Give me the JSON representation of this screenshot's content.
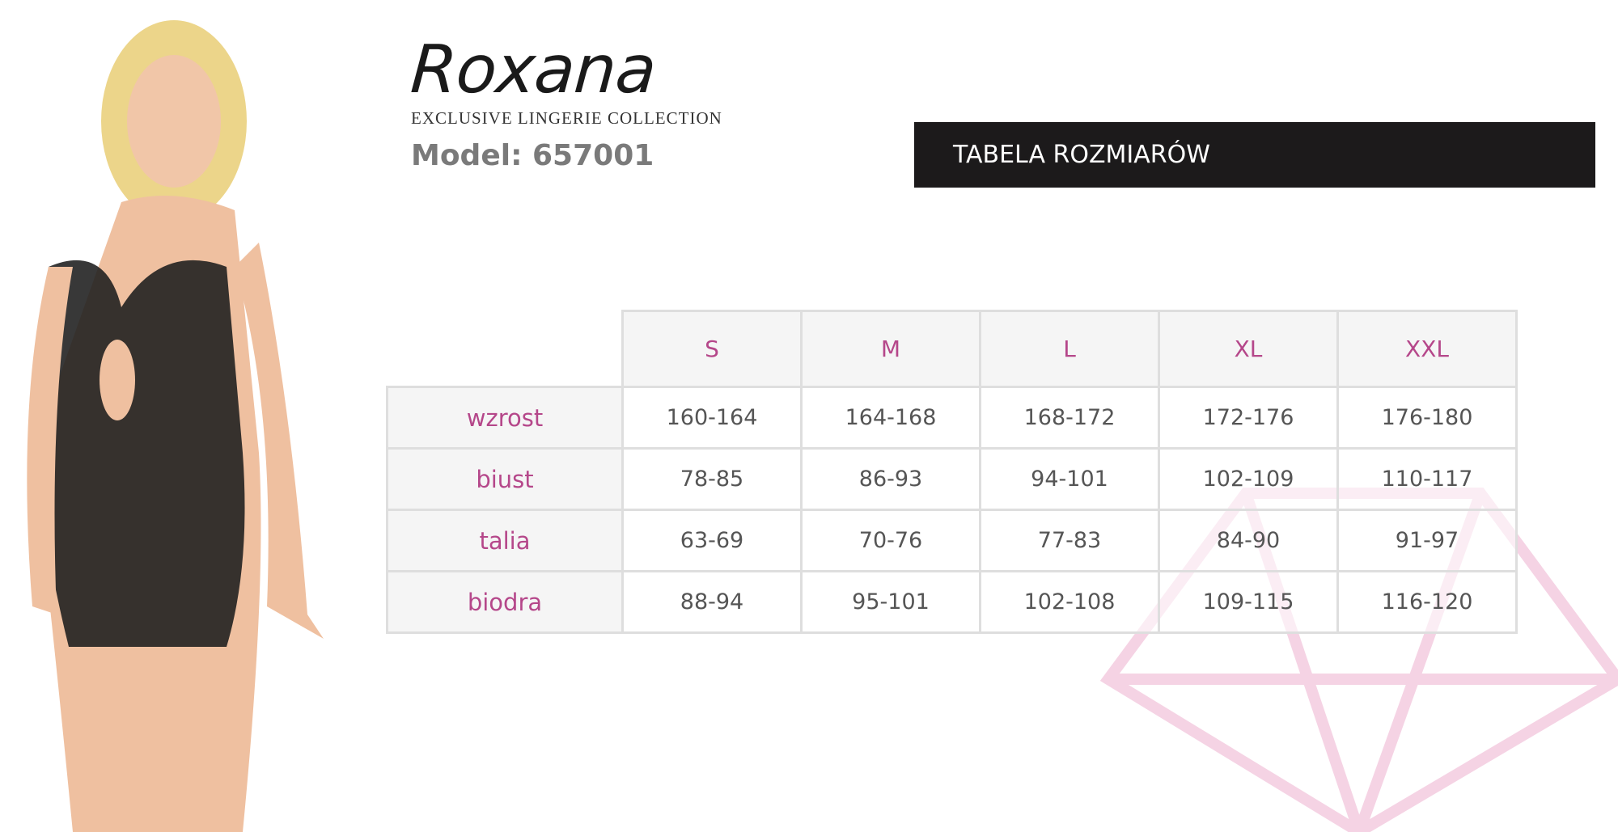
{
  "brand": {
    "name": "Roxana",
    "tagline": "EXCLUSIVE LINGERIE COLLECTION"
  },
  "model_label": "Model: 657001",
  "banner": {
    "title": "TABELA ROZMIARÓW"
  },
  "colors": {
    "accent": "#b5478a",
    "banner_bg": "#1c1a1b",
    "watermark": "#f5d3e4"
  },
  "size_table": {
    "sizes": [
      "S",
      "M",
      "L",
      "XL",
      "XXL"
    ],
    "rows": [
      {
        "label": "wzrost",
        "values": [
          "160-164",
          "164-168",
          "168-172",
          "172-176",
          "176-180"
        ]
      },
      {
        "label": "biust",
        "values": [
          "78-85",
          "86-93",
          "94-101",
          "102-109",
          "110-117"
        ]
      },
      {
        "label": "talia",
        "values": [
          "63-69",
          "70-76",
          "77-83",
          "84-90",
          "91-97"
        ]
      },
      {
        "label": "biodra",
        "values": [
          "88-94",
          "95-101",
          "102-108",
          "109-115",
          "116-120"
        ]
      }
    ]
  }
}
